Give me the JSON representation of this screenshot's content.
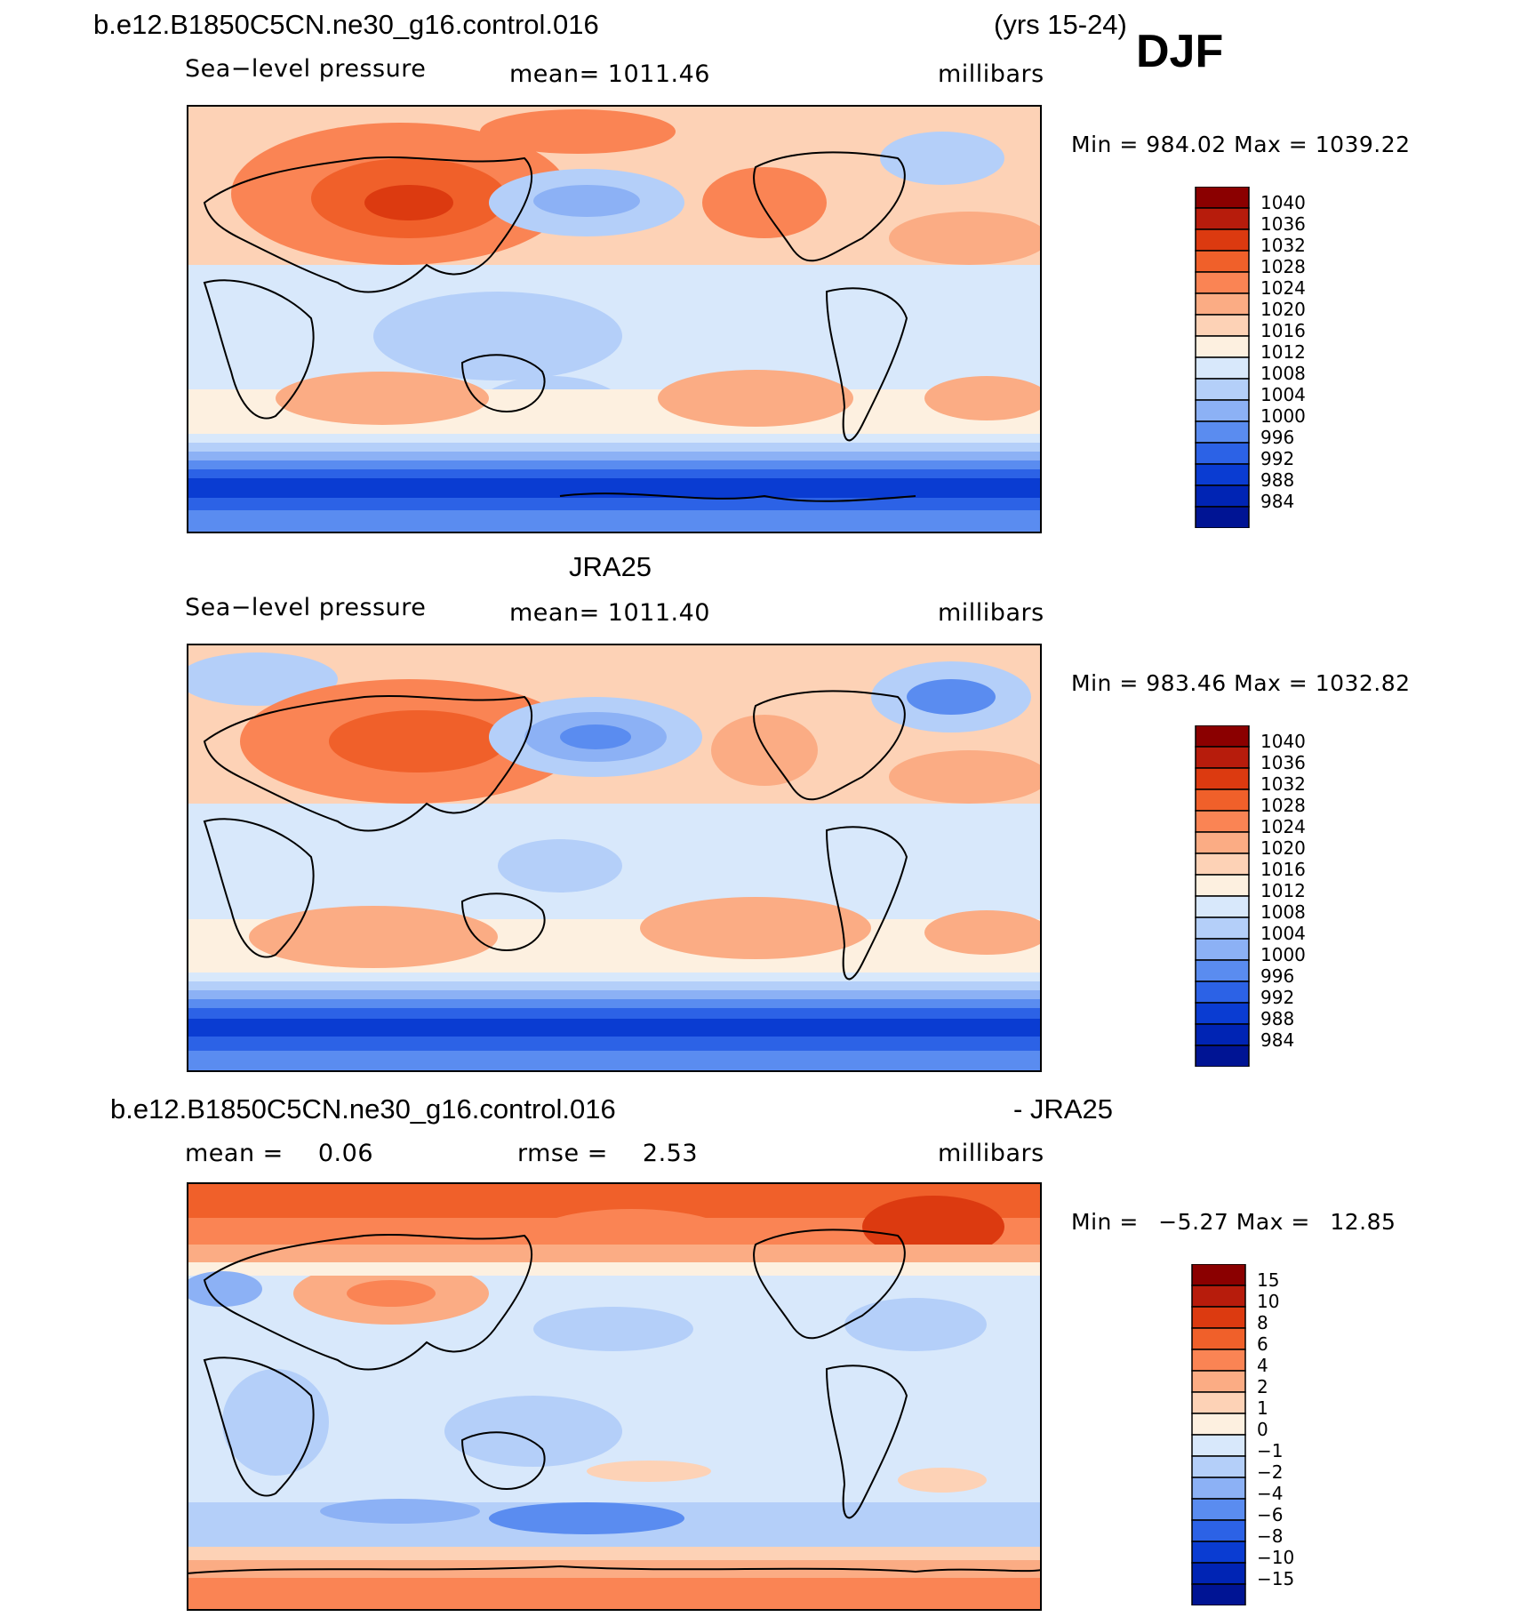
{
  "header": {
    "case_name": "b.e12.B1850C5CN.ne30_g16.control.016",
    "years": "(yrs 15-24)",
    "season": "DJF"
  },
  "panels": [
    {
      "top_title": "",
      "variable": "Sea−level pressure",
      "mean_label": "mean=",
      "mean_value": "1011.46",
      "units": "millibars",
      "min_label": "Min",
      "min_value": "984.02",
      "max_label": "Max",
      "max_value": "1039.22",
      "colorbar_labels": [
        "1040",
        "1036",
        "1032",
        "1028",
        "1024",
        "1020",
        "1016",
        "1012",
        "1008",
        "1004",
        "1000",
        "996",
        "992",
        "988",
        "984"
      ]
    },
    {
      "top_title": "JRA25",
      "variable": "Sea−level pressure",
      "mean_label": "mean=",
      "mean_value": "1011.40",
      "units": "millibars",
      "min_label": "Min",
      "min_value": "983.46",
      "max_label": "Max",
      "max_value": "1032.82",
      "colorbar_labels": [
        "1040",
        "1036",
        "1032",
        "1028",
        "1024",
        "1020",
        "1016",
        "1012",
        "1008",
        "1004",
        "1000",
        "996",
        "992",
        "988",
        "984"
      ]
    },
    {
      "top_title": "b.e12.B1850C5CN.ne30_g16.control.016",
      "top_title_right": "- JRA25",
      "mean_label": "mean =",
      "mean_value": "0.06",
      "rmse_label": "rmse =",
      "rmse_value": "2.53",
      "units": "millibars",
      "min_label": "Min",
      "min_value": "−5.27",
      "max_label": "Max",
      "max_value": "12.85",
      "colorbar_labels": [
        "15",
        "10",
        "8",
        "6",
        "4",
        "2",
        "1",
        "0",
        "−1",
        "−2",
        "−4",
        "−6",
        "−8",
        "−10",
        "−15"
      ]
    }
  ],
  "colors": {
    "levels": [
      "#8b0000",
      "#b71c0c",
      "#dc3a10",
      "#f0602a",
      "#fa8454",
      "#fbac84",
      "#fdd2b6",
      "#fdf0e0",
      "#d8e8fb",
      "#b4cff9",
      "#8cb1f5",
      "#5a8cf0",
      "#2c62e6",
      "#0a3cd2",
      "#0024b4",
      "#001494"
    ]
  }
}
